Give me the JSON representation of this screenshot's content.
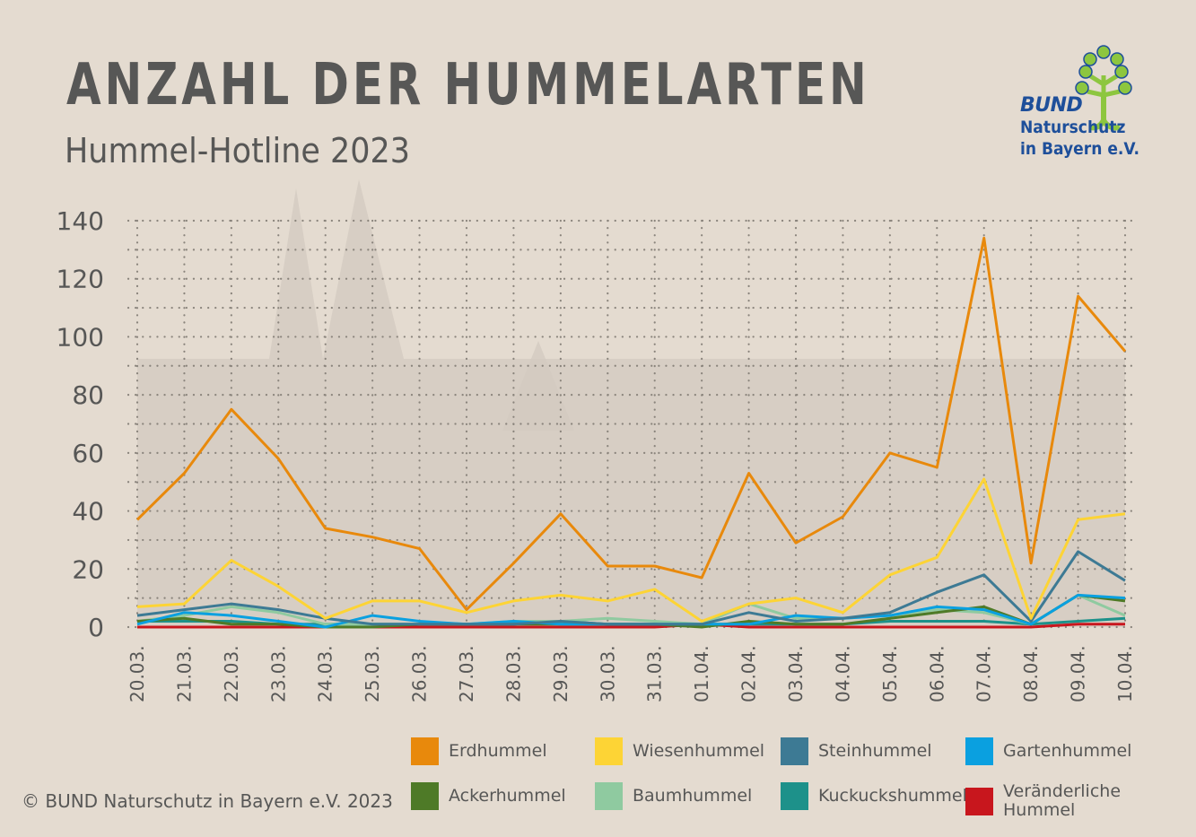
{
  "header": {
    "title": "ANZAHL DER HUMMELARTEN",
    "subtitle": "Hummel-Hotline 2023"
  },
  "logo": {
    "line1": "BUND",
    "line2": "Naturschutz",
    "line3": "in Bayern e.V.",
    "color": "#1e4f9a",
    "tree_color": "#8dc63f"
  },
  "footer": {
    "copyright": "© BUND Naturschutz in Bayern e.V. 2023"
  },
  "chart_data": {
    "type": "line",
    "title": "ANZAHL DER HUMMELARTEN",
    "subtitle": "Hummel-Hotline 2023",
    "xlabel": "",
    "ylabel": "",
    "ylim": [
      0,
      140
    ],
    "yticks": [
      0,
      20,
      40,
      60,
      80,
      100,
      120,
      140
    ],
    "grid": true,
    "legend_position": "bottom",
    "categories": [
      "20.03.",
      "21.03.",
      "22.03.",
      "23.03.",
      "24.03.",
      "25.03.",
      "26.03.",
      "27.03.",
      "28.03.",
      "29.03.",
      "30.03.",
      "31.03.",
      "01.04.",
      "02.04.",
      "03.04.",
      "04.04.",
      "05.04.",
      "06.04.",
      "07.04.",
      "08.04.",
      "09.04.",
      "10.04."
    ],
    "series": [
      {
        "name": "Veränderliche Hummel",
        "color": "#c8161d",
        "values": [
          0,
          0,
          0,
          0,
          0,
          0,
          0,
          0,
          0,
          0,
          0,
          0,
          1,
          0,
          0,
          0,
          0,
          0,
          0,
          0,
          1,
          1
        ]
      },
      {
        "name": "Kuckuckshummel",
        "color": "#1d918a",
        "values": [
          2,
          2,
          2,
          1,
          1,
          1,
          1,
          1,
          1,
          2,
          1,
          1,
          1,
          1,
          1,
          1,
          2,
          2,
          2,
          1,
          2,
          3
        ]
      },
      {
        "name": "Baumhummel",
        "color": "#8fcaa0",
        "values": [
          2,
          4,
          7,
          5,
          1,
          1,
          1,
          1,
          2,
          2,
          3,
          2,
          1,
          8,
          3,
          3,
          4,
          6,
          5,
          1,
          11,
          4
        ]
      },
      {
        "name": "Ackerhummel",
        "color": "#4e7a27",
        "values": [
          2,
          3,
          1,
          1,
          0,
          0,
          1,
          1,
          1,
          1,
          1,
          1,
          0,
          2,
          1,
          1,
          3,
          5,
          7,
          1,
          11,
          9
        ]
      },
      {
        "name": "Gartenhummel",
        "color": "#0aa0e0",
        "values": [
          1,
          5,
          4,
          2,
          0,
          4,
          2,
          1,
          2,
          1,
          1,
          1,
          1,
          1,
          4,
          3,
          4,
          7,
          6,
          1,
          11,
          10
        ]
      },
      {
        "name": "Steinhummel",
        "color": "#3d7a94",
        "values": [
          4,
          6,
          8,
          6,
          3,
          1,
          1,
          1,
          1,
          2,
          1,
          1,
          1,
          5,
          2,
          3,
          5,
          12,
          18,
          2,
          26,
          16
        ]
      },
      {
        "name": "Wiesenhummel",
        "color": "#fdd435",
        "values": [
          7,
          8,
          23,
          14,
          3,
          9,
          9,
          5,
          9,
          11,
          9,
          13,
          2,
          8,
          10,
          5,
          18,
          24,
          51,
          3,
          37,
          39
        ]
      },
      {
        "name": "Erdhummel",
        "color": "#e8890c",
        "values": [
          37,
          53,
          75,
          58,
          34,
          31,
          27,
          6,
          22,
          39,
          21,
          21,
          17,
          53,
          29,
          38,
          60,
          55,
          134,
          22,
          114,
          95
        ]
      }
    ],
    "legend": [
      {
        "label": "Erdhummel",
        "color": "#e8890c"
      },
      {
        "label": "Wiesenhummel",
        "color": "#fdd435"
      },
      {
        "label": "Steinhummel",
        "color": "#3d7a94"
      },
      {
        "label": "Gartenhummel",
        "color": "#0aa0e0"
      },
      {
        "label": "Ackerhummel",
        "color": "#4e7a27"
      },
      {
        "label": "Baumhummel",
        "color": "#8fcaa0"
      },
      {
        "label": "Kuckuckshummel",
        "color": "#1d918a"
      },
      {
        "label": "Veränderliche Hummel",
        "color": "#c8161d"
      }
    ]
  }
}
